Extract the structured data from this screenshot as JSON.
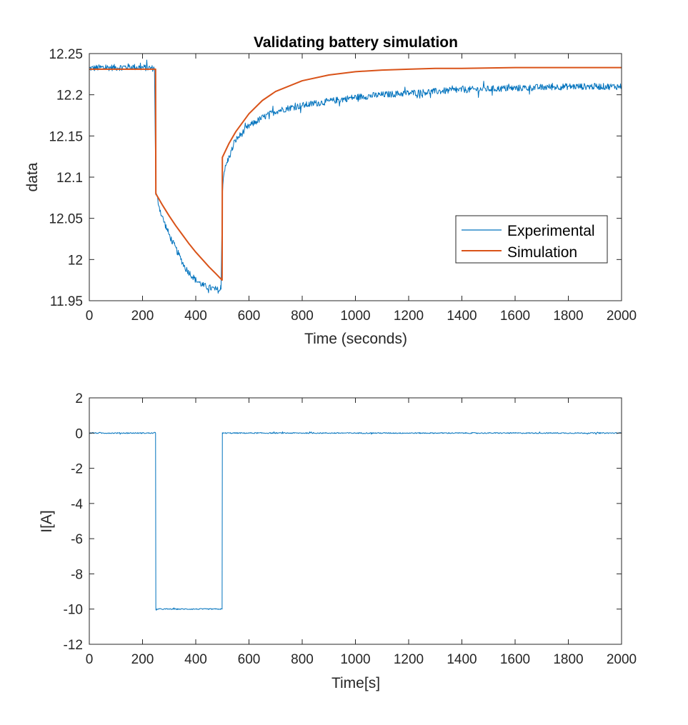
{
  "chart_data": [
    {
      "type": "line",
      "title": "Validating battery simulation",
      "xlabel": "Time (seconds)",
      "ylabel": "data",
      "xlim": [
        0,
        2000
      ],
      "ylim": [
        11.95,
        12.25
      ],
      "xticks": [
        0,
        200,
        400,
        600,
        800,
        1000,
        1200,
        1400,
        1600,
        1800,
        2000
      ],
      "yticks": [
        11.95,
        12,
        12.05,
        12.1,
        12.15,
        12.2,
        12.25
      ],
      "ytick_labels": [
        "11.95",
        "12",
        "12.05",
        "12.1",
        "12.15",
        "12.2",
        "12.25"
      ],
      "legend": {
        "location": "east",
        "entries": [
          "Experimental",
          "Simulation"
        ]
      },
      "series": [
        {
          "name": "Experimental",
          "color": "#0072BD",
          "x": [
            0,
            50,
            100,
            150,
            200,
            245,
            250,
            255,
            270,
            300,
            330,
            360,
            400,
            430,
            460,
            495,
            500,
            505,
            520,
            550,
            600,
            650,
            700,
            750,
            800,
            900,
            1000,
            1100,
            1200,
            1300,
            1400,
            1500,
            1600,
            1700,
            1800,
            1900,
            2000
          ],
          "y": [
            12.232,
            12.233,
            12.233,
            12.234,
            12.233,
            12.232,
            12.08,
            12.075,
            12.055,
            12.03,
            12.01,
            11.99,
            11.975,
            11.968,
            11.965,
            11.962,
            12.08,
            12.105,
            12.12,
            12.145,
            12.162,
            12.172,
            12.18,
            12.184,
            12.187,
            12.192,
            12.197,
            12.2,
            12.202,
            12.204,
            12.206,
            12.207,
            12.208,
            12.209,
            12.21,
            12.21,
            12.21
          ],
          "noise": 0.004
        },
        {
          "name": "Simulation",
          "color": "#D95319",
          "x": [
            0,
            249,
            250,
            275,
            300,
            325,
            350,
            375,
            400,
            425,
            450,
            475,
            499,
            500,
            525,
            550,
            600,
            650,
            700,
            800,
            900,
            1000,
            1100,
            1200,
            1300,
            1400,
            1600,
            1800,
            2000
          ],
          "y": [
            12.231,
            12.231,
            12.08,
            12.066,
            12.053,
            12.041,
            12.03,
            12.019,
            12.009,
            12.0,
            11.991,
            11.983,
            11.975,
            12.124,
            12.141,
            12.155,
            12.177,
            12.193,
            12.204,
            12.217,
            12.224,
            12.228,
            12.23,
            12.231,
            12.232,
            12.232,
            12.233,
            12.233,
            12.233
          ]
        }
      ]
    },
    {
      "type": "line",
      "title": "",
      "xlabel": "Time[s]",
      "ylabel": "I[A]",
      "xlim": [
        0,
        2000
      ],
      "ylim": [
        -12,
        2
      ],
      "xticks": [
        0,
        200,
        400,
        600,
        800,
        1000,
        1200,
        1400,
        1600,
        1800,
        2000
      ],
      "yticks": [
        -12,
        -10,
        -8,
        -6,
        -4,
        -2,
        0,
        2
      ],
      "ytick_labels": [
        "-12",
        "-10",
        "-8",
        "-6",
        "-4",
        "-2",
        "0",
        "2"
      ],
      "series": [
        {
          "color": "#0072BD",
          "x": [
            0,
            249,
            250,
            499,
            500,
            2000
          ],
          "y": [
            0,
            0,
            -10,
            -10,
            0,
            0
          ],
          "noise": 0.03
        }
      ]
    }
  ]
}
